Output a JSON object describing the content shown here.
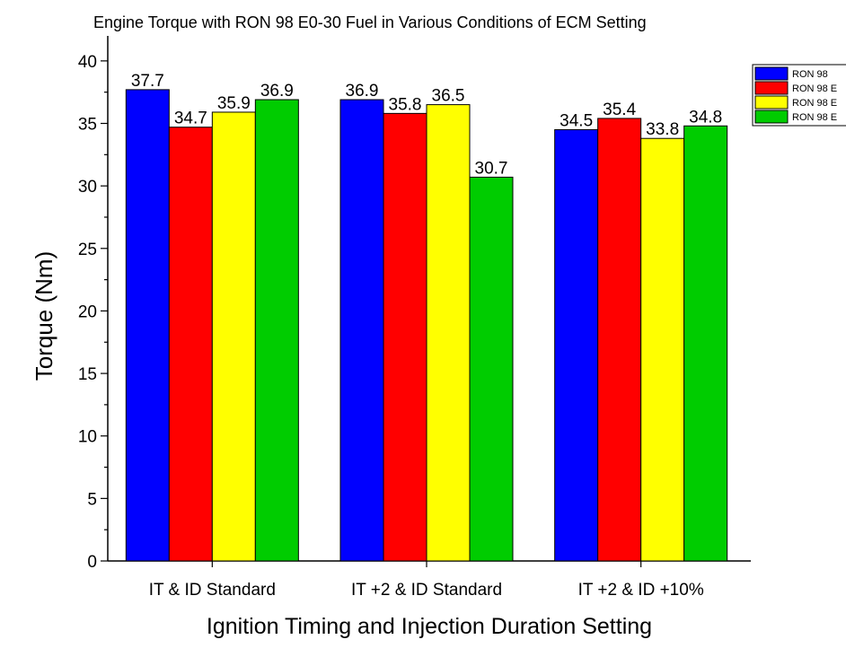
{
  "chart_data": {
    "type": "bar",
    "title": "Engine Torque with RON 98 E0-30 Fuel in Various Conditions of ECM Setting",
    "xlabel": "Ignition Timing and Injection Duration Setting",
    "ylabel": "Torque (Nm)",
    "ylim": [
      0,
      42
    ],
    "yticks": [
      "0",
      "5",
      "10",
      "15",
      "20",
      "25",
      "30",
      "35",
      "40"
    ],
    "categories": [
      "IT & ID Standard",
      "IT +2 & ID Standard",
      "IT +2 & ID +10%"
    ],
    "series": [
      {
        "name": "RON 98",
        "color": "#0000ff",
        "values": [
          37.7,
          36.9,
          34.5
        ]
      },
      {
        "name": "RON 98 E",
        "color": "#ff0000",
        "values": [
          34.7,
          35.8,
          35.4
        ]
      },
      {
        "name": "RON 98 E",
        "color": "#ffff00",
        "values": [
          35.9,
          36.5,
          33.8
        ]
      },
      {
        "name": "RON 98 E",
        "color": "#00cc00",
        "values": [
          36.9,
          30.7,
          34.8
        ]
      }
    ],
    "legend_position": "top-right",
    "grid": false
  }
}
